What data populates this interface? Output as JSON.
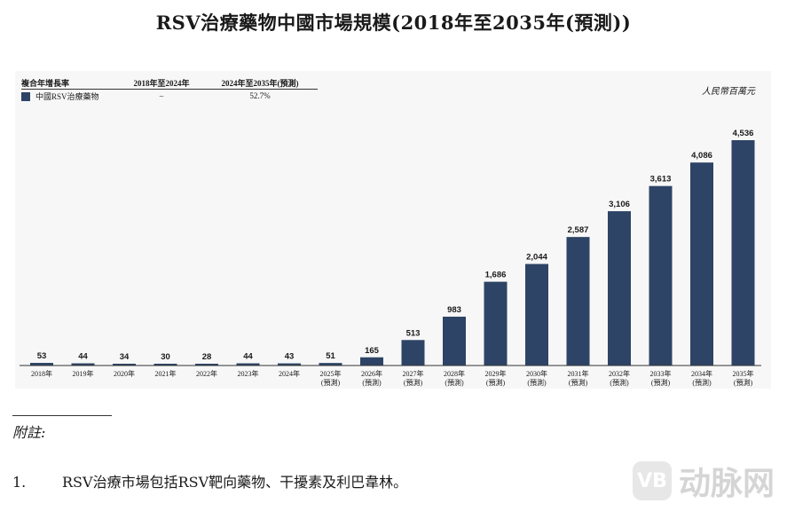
{
  "title": "RSV治療藥物中國市場規模(2018年至2035年(預測))",
  "unit_label": "人民幣百萬元",
  "cagr_table": {
    "header": [
      "複合年增長率",
      "2018年至2024年",
      "2024年至2035年(預測)"
    ],
    "row": {
      "series": "中國RSV治療藥物",
      "cagr_2018_2024": "–",
      "cagr_2024_2035": "52.7%"
    }
  },
  "colors": {
    "bar": "#2e4466",
    "axis": "#333333"
  },
  "chart_data": {
    "type": "bar",
    "categories": [
      [
        "2018年"
      ],
      [
        "2019年"
      ],
      [
        "2020年"
      ],
      [
        "2021年"
      ],
      [
        "2022年"
      ],
      [
        "2023年"
      ],
      [
        "2024年"
      ],
      [
        "2025年",
        "(預測)"
      ],
      [
        "2026年",
        "(預測)"
      ],
      [
        "2027年",
        "(預測)"
      ],
      [
        "2028年",
        "(預測)"
      ],
      [
        "2029年",
        "(預測)"
      ],
      [
        "2030年",
        "(預測)"
      ],
      [
        "2031年",
        "(預測)"
      ],
      [
        "2032年",
        "(預測)"
      ],
      [
        "2033年",
        "(預測)"
      ],
      [
        "2034年",
        "(預測)"
      ],
      [
        "2035年",
        "(預測)"
      ]
    ],
    "values": [
      53,
      44,
      34,
      30,
      28,
      44,
      43,
      51,
      165,
      513,
      983,
      1686,
      2044,
      2587,
      3106,
      3613,
      4086,
      4536
    ],
    "value_labels": [
      "53",
      "44",
      "34",
      "30",
      "28",
      "44",
      "43",
      "51",
      "165",
      "513",
      "983",
      "1,686",
      "2,044",
      "2,587",
      "3,106",
      "3,613",
      "4,086",
      "4,536"
    ],
    "ylim": [
      0,
      4536
    ],
    "grid": false,
    "legend": "top-left table"
  },
  "footnote": {
    "title": "附註:",
    "items": [
      {
        "number": "1.",
        "text": "RSV治療市場包括RSV靶向藥物、干擾素及利巴韋林。"
      }
    ]
  },
  "watermark": "动脉网",
  "watermark_logo": "VB"
}
